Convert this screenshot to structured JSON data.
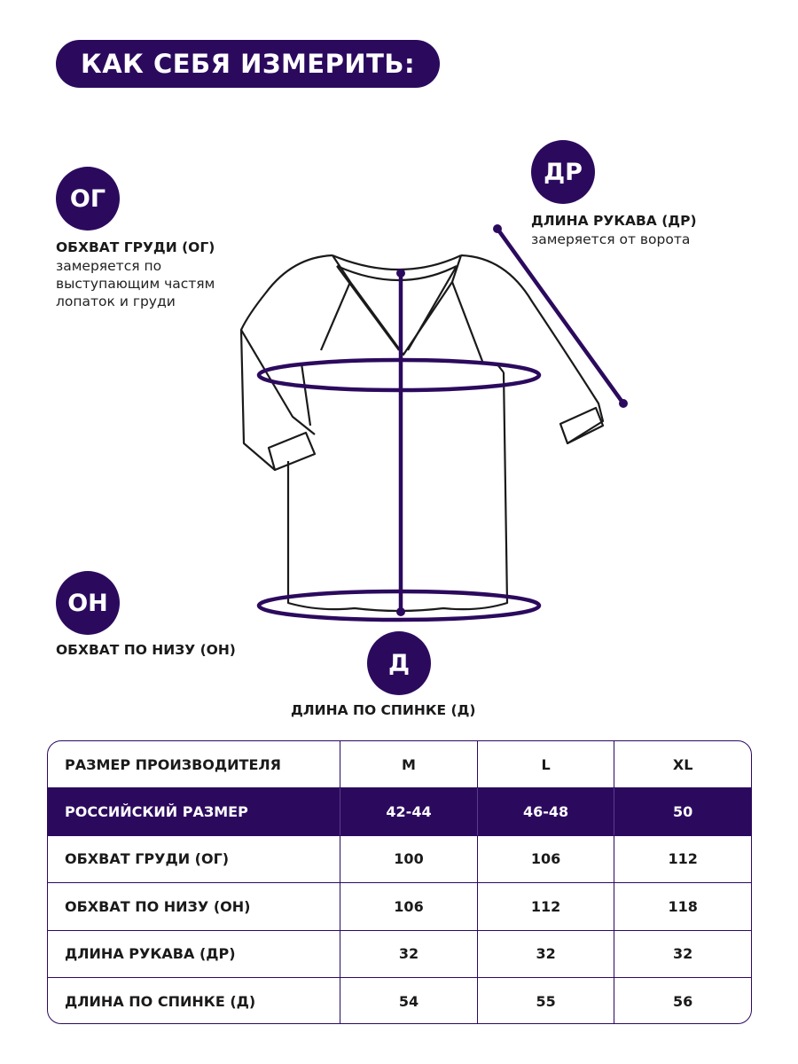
{
  "title": "КАК СЕБЯ ИЗМЕРИТЬ:",
  "accent_color": "#2b0a5e",
  "measures": {
    "og": {
      "badge": "ОГ",
      "label": "ОБХВАТ ГРУДИ (ОГ)",
      "desc": [
        "замеряется по",
        "выступающим частям",
        "лопаток и груди"
      ]
    },
    "dr": {
      "badge": "ДР",
      "label": "ДЛИНА РУКАВА (ДР)",
      "desc": [
        "замеряется от ворота"
      ]
    },
    "on": {
      "badge": "ОН",
      "label": "ОБХВАТ ПО НИЗУ (ОН)"
    },
    "d": {
      "badge": "Д",
      "label": "ДЛИНА ПО СПИНКЕ (Д)"
    }
  },
  "table": {
    "rows": [
      [
        "РАЗМЕР ПРОИЗВОДИТЕЛЯ",
        "M",
        "L",
        "XL"
      ],
      [
        "РОССИЙСКИЙ РАЗМЕР",
        "42-44",
        "46-48",
        "50"
      ],
      [
        "ОБХВАТ ГРУДИ (ОГ)",
        "100",
        "106",
        "112"
      ],
      [
        "ОБХВАТ ПО НИЗУ (ОН)",
        "106",
        "112",
        "118"
      ],
      [
        "ДЛИНА РУКАВА (ДР)",
        "32",
        "32",
        "32"
      ],
      [
        "ДЛИНА ПО СПИНКЕ (Д)",
        "54",
        "55",
        "56"
      ]
    ],
    "highlight_row": 1
  }
}
